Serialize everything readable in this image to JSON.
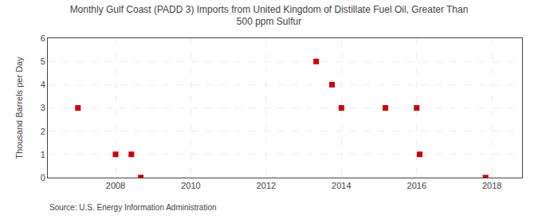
{
  "chart_data": {
    "type": "scatter",
    "title": "Monthly Gulf Coast (PADD 3) Imports from United Kingdom of Distillate Fuel Oil, Greater Than\n500 ppm Sulfur",
    "ylabel": "Thousand Barrels per Day",
    "annotations": [
      "Source: U.S. Energy Information Administration"
    ],
    "x": [
      2007.0,
      2008.0,
      2008.42,
      2008.67,
      2013.33,
      2013.75,
      2014.0,
      2015.17,
      2016.0,
      2016.08,
      2017.83
    ],
    "values": [
      3.0,
      1.0,
      1.0,
      0.0,
      5.0,
      4.0,
      3.0,
      3.0,
      3.0,
      1.0,
      0.0
    ],
    "color": "#cc0000",
    "marker": "square",
    "xlim": [
      2006.2,
      2018.8
    ],
    "xticks": [
      2008,
      2010,
      2012,
      2014,
      2016,
      2018
    ],
    "ylim": [
      0,
      6
    ],
    "yticks": [
      0,
      1,
      2,
      3,
      4,
      5,
      6
    ],
    "grid": true
  }
}
